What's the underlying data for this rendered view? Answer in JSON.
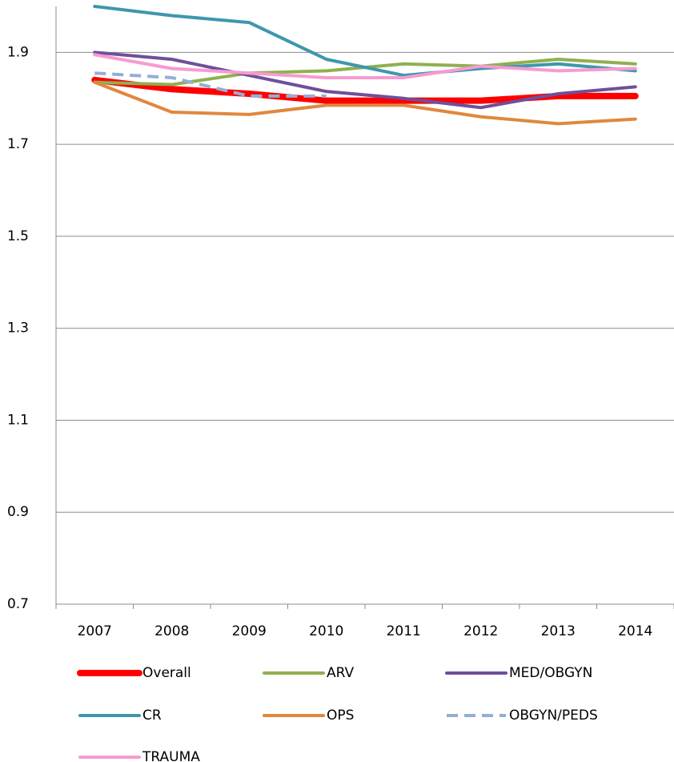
{
  "chart_data": {
    "type": "line",
    "categories": [
      "2007",
      "2008",
      "2009",
      "2010",
      "2011",
      "2012",
      "2013",
      "2014"
    ],
    "ylim": [
      0.7,
      2.0
    ],
    "yticks": [
      0.7,
      0.9,
      1.1,
      1.3,
      1.5,
      1.7,
      1.9
    ],
    "grid": true,
    "legend": "bottom",
    "series": [
      {
        "name": "Overall",
        "color": "#ff0000",
        "line_width": 8,
        "dashed": false,
        "values": [
          1.84,
          1.82,
          1.81,
          1.795,
          1.795,
          1.795,
          1.805,
          1.805
        ]
      },
      {
        "name": "ARV",
        "color": "#8fb04e",
        "line_width": 4,
        "dashed": false,
        "values": [
          1.835,
          1.83,
          1.855,
          1.86,
          1.875,
          1.87,
          1.885,
          1.875
        ]
      },
      {
        "name": "MED/OBGYN",
        "color": "#6f4f9b",
        "line_width": 4,
        "dashed": false,
        "values": [
          1.9,
          1.885,
          1.85,
          1.815,
          1.8,
          1.78,
          1.81,
          1.825
        ]
      },
      {
        "name": "CR",
        "color": "#3e97ae",
        "line_width": 4,
        "dashed": false,
        "values": [
          2.0,
          1.98,
          1.965,
          1.885,
          1.85,
          1.865,
          1.875,
          1.86
        ]
      },
      {
        "name": "OPS",
        "color": "#e0883f",
        "line_width": 4,
        "dashed": false,
        "values": [
          1.835,
          1.77,
          1.765,
          1.785,
          1.785,
          1.76,
          1.745,
          1.755
        ]
      },
      {
        "name": "OBGYN/PEDS",
        "color": "#94aed6",
        "line_width": 4,
        "dashed": true,
        "values": [
          1.855,
          1.845,
          1.805,
          1.805,
          null,
          null,
          null,
          null
        ]
      },
      {
        "name": "TRAUMA",
        "color": "#f79bd0",
        "line_width": 4,
        "dashed": false,
        "values": [
          1.895,
          1.865,
          1.855,
          1.845,
          1.845,
          1.87,
          1.86,
          1.865
        ]
      }
    ]
  }
}
